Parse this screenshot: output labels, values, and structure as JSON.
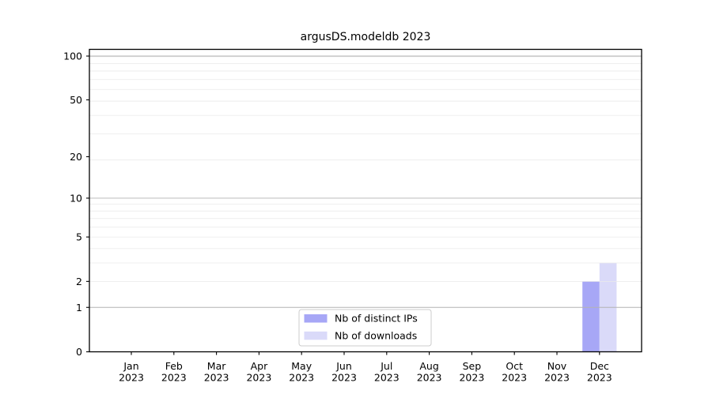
{
  "chart_data": {
    "type": "bar",
    "title": "argusDS.modeldb 2023",
    "categories": [
      "Jan",
      "Feb",
      "Mar",
      "Apr",
      "May",
      "Jun",
      "Jul",
      "Aug",
      "Sep",
      "Oct",
      "Nov",
      "Dec"
    ],
    "category_year": "2023",
    "series": [
      {
        "name": "Nb of distinct IPs",
        "color": "#a7a7f6",
        "values": [
          0,
          0,
          0,
          0,
          0,
          0,
          0,
          0,
          0,
          0,
          0,
          2
        ]
      },
      {
        "name": "Nb of downloads",
        "color": "#dadaf9",
        "values": [
          0,
          0,
          0,
          0,
          0,
          0,
          0,
          0,
          0,
          0,
          0,
          3
        ]
      }
    ],
    "y_ticks": [
      0,
      1,
      2,
      5,
      10,
      20,
      50,
      100
    ],
    "y_scale": "log1p",
    "ylim": [
      0,
      111
    ],
    "grid": true,
    "legend_position": "lower center",
    "legend_labels": [
      "Nb of distinct IPs",
      "Nb of downloads"
    ]
  },
  "colors": {
    "background": "#ffffff",
    "spine": "#000000",
    "tick": "#000000",
    "grid_major": "#b3b3b3",
    "grid_minor": "#eaeaea",
    "legend_border": "#cccccc",
    "legend_fill": "#ffffff"
  }
}
